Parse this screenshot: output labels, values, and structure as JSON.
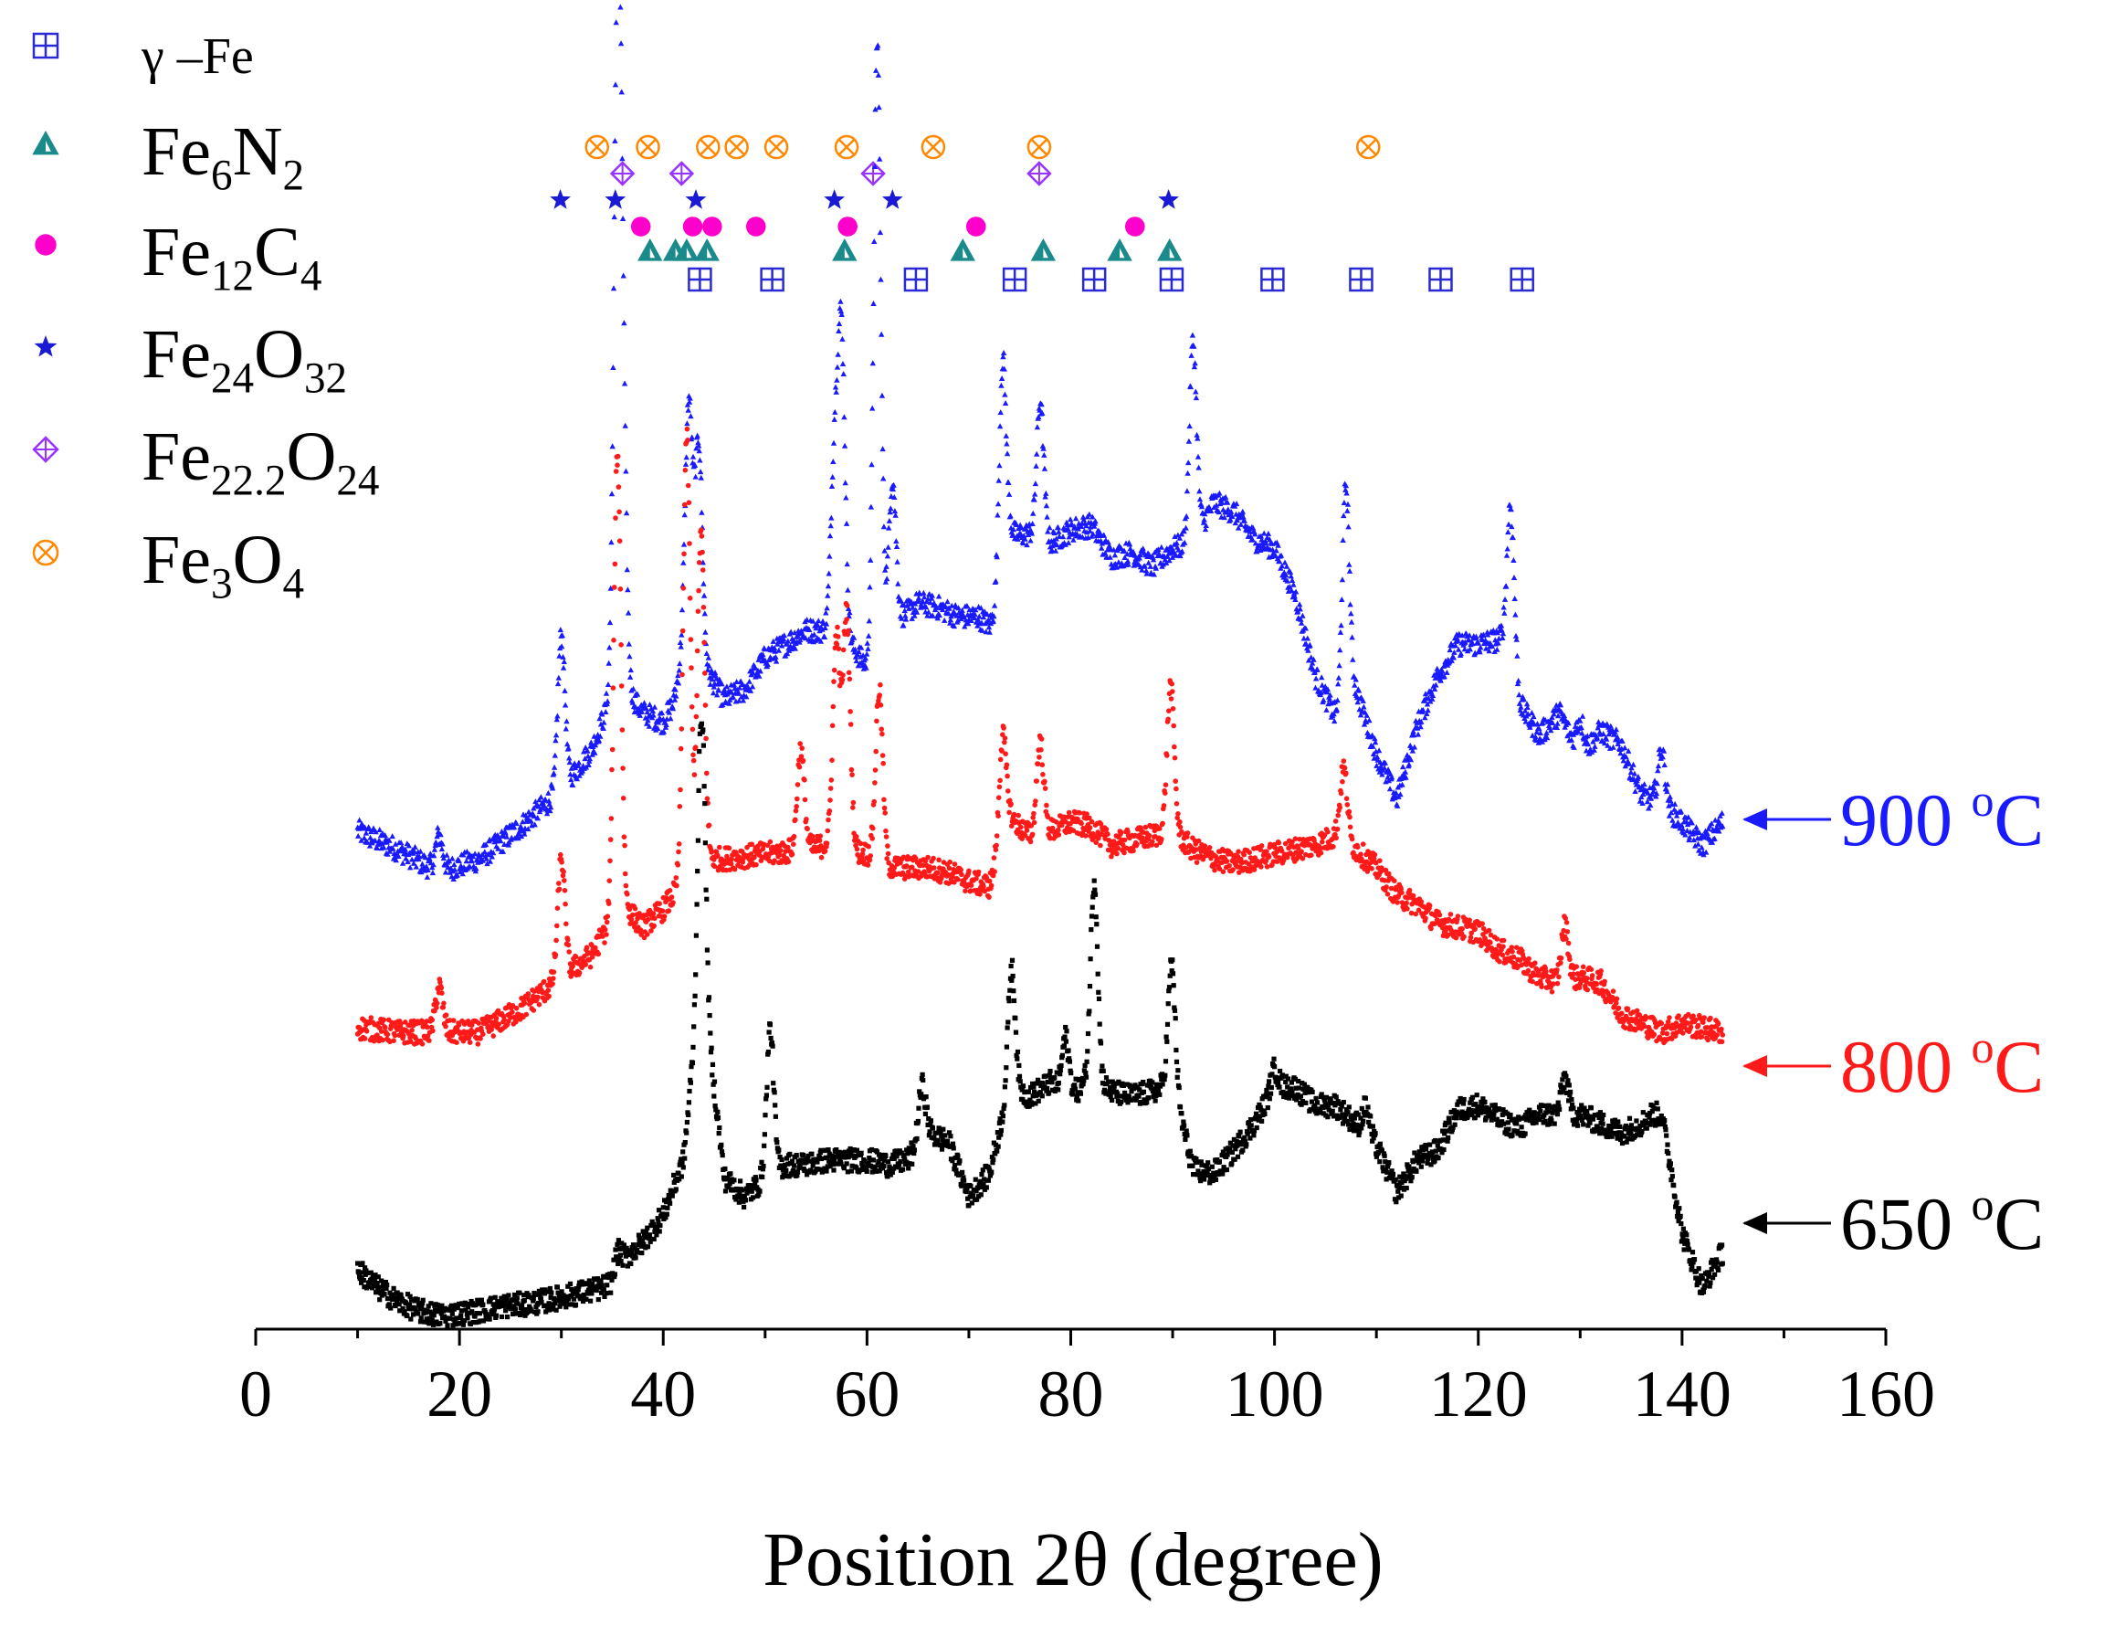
{
  "chart_data": {
    "type": "scatter",
    "title": "",
    "xlabel": "Position 2θ (degree)",
    "ylabel": "",
    "xlim": [
      0,
      160
    ],
    "xticks": [
      0,
      20,
      40,
      60,
      80,
      100,
      120,
      140,
      160
    ],
    "grid": false,
    "legend_placement": "top-left",
    "series": [
      {
        "name": "900 °C",
        "color": "#1a1aff",
        "marker": "triangle",
        "baseline": 380,
        "points": [
          [
            10,
            160
          ],
          [
            14,
            140
          ],
          [
            18,
            115
          ],
          [
            22,
            130
          ],
          [
            26,
            165
          ],
          [
            30,
            205
          ],
          [
            33,
            250
          ],
          [
            35,
            310
          ],
          [
            36,
            320
          ],
          [
            38,
            290
          ],
          [
            40,
            280
          ],
          [
            41,
            300
          ],
          [
            42,
            360
          ],
          [
            43,
            380
          ],
          [
            44,
            340
          ],
          [
            46,
            305
          ],
          [
            48,
            315
          ],
          [
            50,
            350
          ],
          [
            52,
            365
          ],
          [
            54,
            380
          ],
          [
            56,
            380
          ],
          [
            57,
            390
          ],
          [
            58,
            370
          ],
          [
            59,
            355
          ],
          [
            60,
            340
          ],
          [
            61,
            375
          ],
          [
            63,
            390
          ],
          [
            65,
            410
          ],
          [
            67,
            405
          ],
          [
            69,
            395
          ],
          [
            71,
            395
          ],
          [
            72,
            385
          ],
          [
            73,
            400
          ],
          [
            74,
            485
          ],
          [
            76,
            485
          ],
          [
            78,
            475
          ],
          [
            80,
            490
          ],
          [
            82,
            495
          ],
          [
            84,
            460
          ],
          [
            86,
            465
          ],
          [
            88,
            450
          ],
          [
            90,
            470
          ],
          [
            92,
            475
          ],
          [
            94,
            520
          ],
          [
            96,
            510
          ],
          [
            98,
            480
          ],
          [
            100,
            470
          ],
          [
            102,
            420
          ],
          [
            104,
            330
          ],
          [
            106,
            285
          ],
          [
            107,
            310
          ],
          [
            108,
            315
          ],
          [
            110,
            245
          ],
          [
            112,
            195
          ],
          [
            114,
            275
          ],
          [
            116,
            330
          ],
          [
            118,
            365
          ],
          [
            120,
            365
          ],
          [
            122,
            370
          ],
          [
            123,
            380
          ],
          [
            124,
            300
          ],
          [
            126,
            265
          ],
          [
            128,
            290
          ],
          [
            130,
            240
          ],
          [
            132,
            270
          ],
          [
            134,
            255
          ],
          [
            136,
            200
          ],
          [
            138,
            190
          ],
          [
            140,
            170
          ],
          [
            142,
            145
          ],
          [
            144,
            170
          ]
        ],
        "peaks": [
          [
            18,
            40
          ],
          [
            30,
            170
          ],
          [
            35.5,
            710
          ],
          [
            36,
            300
          ],
          [
            42.5,
            260
          ],
          [
            43.5,
            225
          ],
          [
            56.8,
            180
          ],
          [
            57.5,
            320
          ],
          [
            61,
            650
          ],
          [
            62.5,
            160
          ],
          [
            73.3,
            250
          ],
          [
            77,
            150
          ],
          [
            92,
            220
          ],
          [
            107,
            230
          ],
          [
            123.2,
            150
          ],
          [
            130,
            40
          ],
          [
            138,
            60
          ]
        ]
      },
      {
        "name": "800 °C",
        "color": "#ff1a1a",
        "marker": "dot",
        "baseline": 180,
        "points": [
          [
            10,
            145
          ],
          [
            14,
            140
          ],
          [
            18,
            140
          ],
          [
            22,
            140
          ],
          [
            26,
            165
          ],
          [
            30,
            200
          ],
          [
            33,
            225
          ],
          [
            35,
            265
          ],
          [
            36,
            280
          ],
          [
            38,
            255
          ],
          [
            40,
            275
          ],
          [
            41,
            290
          ],
          [
            42,
            310
          ],
          [
            43,
            320
          ],
          [
            44,
            330
          ],
          [
            46,
            330
          ],
          [
            50,
            335
          ],
          [
            54,
            340
          ],
          [
            56,
            345
          ],
          [
            58,
            340
          ],
          [
            60,
            335
          ],
          [
            62,
            320
          ],
          [
            64,
            320
          ],
          [
            66,
            320
          ],
          [
            68,
            315
          ],
          [
            70,
            305
          ],
          [
            72,
            300
          ],
          [
            73,
            330
          ],
          [
            74,
            375
          ],
          [
            76,
            355
          ],
          [
            78,
            360
          ],
          [
            80,
            370
          ],
          [
            82,
            365
          ],
          [
            84,
            345
          ],
          [
            86,
            350
          ],
          [
            88,
            355
          ],
          [
            90,
            360
          ],
          [
            92,
            340
          ],
          [
            94,
            330
          ],
          [
            96,
            325
          ],
          [
            98,
            330
          ],
          [
            100,
            335
          ],
          [
            102,
            340
          ],
          [
            104,
            345
          ],
          [
            106,
            355
          ],
          [
            108,
            340
          ],
          [
            110,
            320
          ],
          [
            112,
            290
          ],
          [
            114,
            280
          ],
          [
            116,
            260
          ],
          [
            118,
            255
          ],
          [
            120,
            250
          ],
          [
            122,
            230
          ],
          [
            124,
            220
          ],
          [
            126,
            200
          ],
          [
            128,
            195
          ],
          [
            130,
            200
          ],
          [
            132,
            195
          ],
          [
            134,
            160
          ],
          [
            136,
            150
          ],
          [
            138,
            140
          ],
          [
            140,
            150
          ],
          [
            142,
            145
          ],
          [
            144,
            140
          ]
        ],
        "peaks": [
          [
            18,
            50
          ],
          [
            30,
            130
          ],
          [
            35.5,
            500
          ],
          [
            42.3,
            480
          ],
          [
            43.7,
            360
          ],
          [
            53.5,
            110
          ],
          [
            57,
            230
          ],
          [
            58,
            260
          ],
          [
            61.2,
            190
          ],
          [
            73.3,
            120
          ],
          [
            77,
            100
          ],
          [
            89.8,
            160
          ],
          [
            106.8,
            80
          ],
          [
            128.5,
            60
          ]
        ]
      },
      {
        "name": "650 °C",
        "color": "#000000",
        "marker": "square",
        "baseline": 0,
        "points": [
          [
            10,
            60
          ],
          [
            12,
            40
          ],
          [
            14,
            25
          ],
          [
            16,
            15
          ],
          [
            18,
            10
          ],
          [
            20,
            12
          ],
          [
            22,
            15
          ],
          [
            24,
            20
          ],
          [
            26,
            22
          ],
          [
            28,
            25
          ],
          [
            30,
            30
          ],
          [
            32,
            35
          ],
          [
            34,
            40
          ],
          [
            35,
            45
          ],
          [
            36,
            70
          ],
          [
            38,
            90
          ],
          [
            40,
            120
          ],
          [
            42,
            180
          ],
          [
            43,
            300
          ],
          [
            43.5,
            390
          ],
          [
            44,
            350
          ],
          [
            45,
            260
          ],
          [
            46,
            160
          ],
          [
            48,
            140
          ],
          [
            50,
            160
          ],
          [
            52,
            175
          ],
          [
            54,
            175
          ],
          [
            56,
            180
          ],
          [
            58,
            180
          ],
          [
            60,
            180
          ],
          [
            62,
            175
          ],
          [
            64,
            180
          ],
          [
            66,
            210
          ],
          [
            68,
            200
          ],
          [
            70,
            140
          ],
          [
            72,
            165
          ],
          [
            74,
            260
          ],
          [
            76,
            250
          ],
          [
            78,
            265
          ],
          [
            80,
            250
          ],
          [
            82,
            270
          ],
          [
            84,
            255
          ],
          [
            86,
            250
          ],
          [
            88,
            255
          ],
          [
            90,
            265
          ],
          [
            92,
            170
          ],
          [
            94,
            165
          ],
          [
            96,
            190
          ],
          [
            98,
            220
          ],
          [
            100,
            260
          ],
          [
            102,
            260
          ],
          [
            104,
            240
          ],
          [
            106,
            240
          ],
          [
            108,
            220
          ],
          [
            110,
            195
          ],
          [
            112,
            145
          ],
          [
            114,
            180
          ],
          [
            116,
            190
          ],
          [
            118,
            235
          ],
          [
            120,
            240
          ],
          [
            122,
            225
          ],
          [
            124,
            215
          ],
          [
            126,
            230
          ],
          [
            128,
            230
          ],
          [
            130,
            230
          ],
          [
            132,
            220
          ],
          [
            134,
            210
          ],
          [
            136,
            220
          ],
          [
            137,
            230
          ],
          [
            138,
            230
          ],
          [
            140,
            100
          ],
          [
            142,
            40
          ],
          [
            144,
            80
          ]
        ],
        "peaks": [
          [
            35.5,
            20
          ],
          [
            43.8,
            300
          ],
          [
            50.5,
            160
          ],
          [
            65.4,
            60
          ],
          [
            74.2,
            130
          ],
          [
            79.5,
            60
          ],
          [
            82.3,
            220
          ],
          [
            89.9,
            130
          ],
          [
            100,
            20
          ],
          [
            109,
            30
          ],
          [
            128.5,
            40
          ]
        ]
      }
    ],
    "reference_markers": [
      {
        "name": "γ –Fe",
        "color": "#2a2ad4",
        "symbol": "square-plus",
        "positions": [
          43.6,
          50.7,
          64.8,
          74.5,
          82.3,
          89.9,
          99.8,
          108.5,
          116.3,
          124.3
        ]
      },
      {
        "name": "Fe6N2",
        "color": "#1a8a8a",
        "symbol": "triangle",
        "positions": [
          38.7,
          41.2,
          42.3,
          44.3,
          57.8,
          69.4,
          77.3,
          84.8,
          89.7
        ]
      },
      {
        "name": "Fe12C4",
        "color": "#ff00cc",
        "symbol": "dot",
        "positions": [
          37.8,
          42.9,
          44.8,
          49.1,
          58.1,
          70.7,
          86.3
        ]
      },
      {
        "name": "Fe24O32",
        "color": "#1a1ad4",
        "symbol": "star",
        "positions": [
          29.9,
          35.3,
          43.2,
          56.8,
          62.5,
          89.6
        ]
      },
      {
        "name": "Fe22.2O24",
        "color": "#9933ff",
        "symbol": "diamond-plus",
        "positions": [
          36.0,
          41.8,
          60.6,
          76.9
        ]
      },
      {
        "name": "Fe3O4",
        "color": "#ff8800",
        "symbol": "circle-x",
        "positions": [
          33.5,
          38.5,
          44.4,
          47.2,
          51.1,
          58.0,
          66.5,
          76.9,
          109.2
        ]
      }
    ],
    "legend": [
      {
        "sym": "square-plus",
        "color": "#2a2ad4",
        "base": "γ –Fe",
        "parts": [
          [
            "γ –Fe",
            ""
          ]
        ]
      },
      {
        "sym": "triangle",
        "color": "#1a8a8a",
        "base": "Fe6N2",
        "parts": [
          [
            "Fe",
            ""
          ],
          [
            "6",
            "sub"
          ],
          [
            "N",
            ""
          ],
          [
            "2",
            "sub"
          ]
        ]
      },
      {
        "sym": "dot",
        "color": "#ff00cc",
        "base": "Fe12C4",
        "parts": [
          [
            "Fe",
            ""
          ],
          [
            "12",
            "sub"
          ],
          [
            "C",
            ""
          ],
          [
            "4",
            "sub"
          ]
        ]
      },
      {
        "sym": "star",
        "color": "#1a1ad4",
        "base": "Fe24O32",
        "parts": [
          [
            "Fe",
            ""
          ],
          [
            "24",
            "sub"
          ],
          [
            "O",
            ""
          ],
          [
            "32",
            "sub"
          ]
        ]
      },
      {
        "sym": "diamond-plus",
        "color": "#9933ff",
        "base": "Fe22.2O24",
        "parts": [
          [
            "Fe",
            ""
          ],
          [
            "22.2",
            "sub"
          ],
          [
            "O",
            ""
          ],
          [
            "24",
            "sub"
          ]
        ]
      },
      {
        "sym": "circle-x",
        "color": "#ff8800",
        "base": "Fe3O4",
        "parts": [
          [
            "Fe",
            ""
          ],
          [
            "3",
            "sub"
          ],
          [
            "O",
            ""
          ],
          [
            "4",
            "sub"
          ]
        ]
      }
    ],
    "curve_labels": [
      {
        "series": "900 °C",
        "value": "900",
        "unit_sup": "o",
        "unit": "C",
        "color": "#1a1aff"
      },
      {
        "series": "800 °C",
        "value": "800",
        "unit_sup": "o",
        "unit": "C",
        "color": "#ff1a1a"
      },
      {
        "series": "650 °C",
        "value": "650",
        "unit_sup": "o",
        "unit": "C",
        "color": "#000000"
      }
    ]
  }
}
